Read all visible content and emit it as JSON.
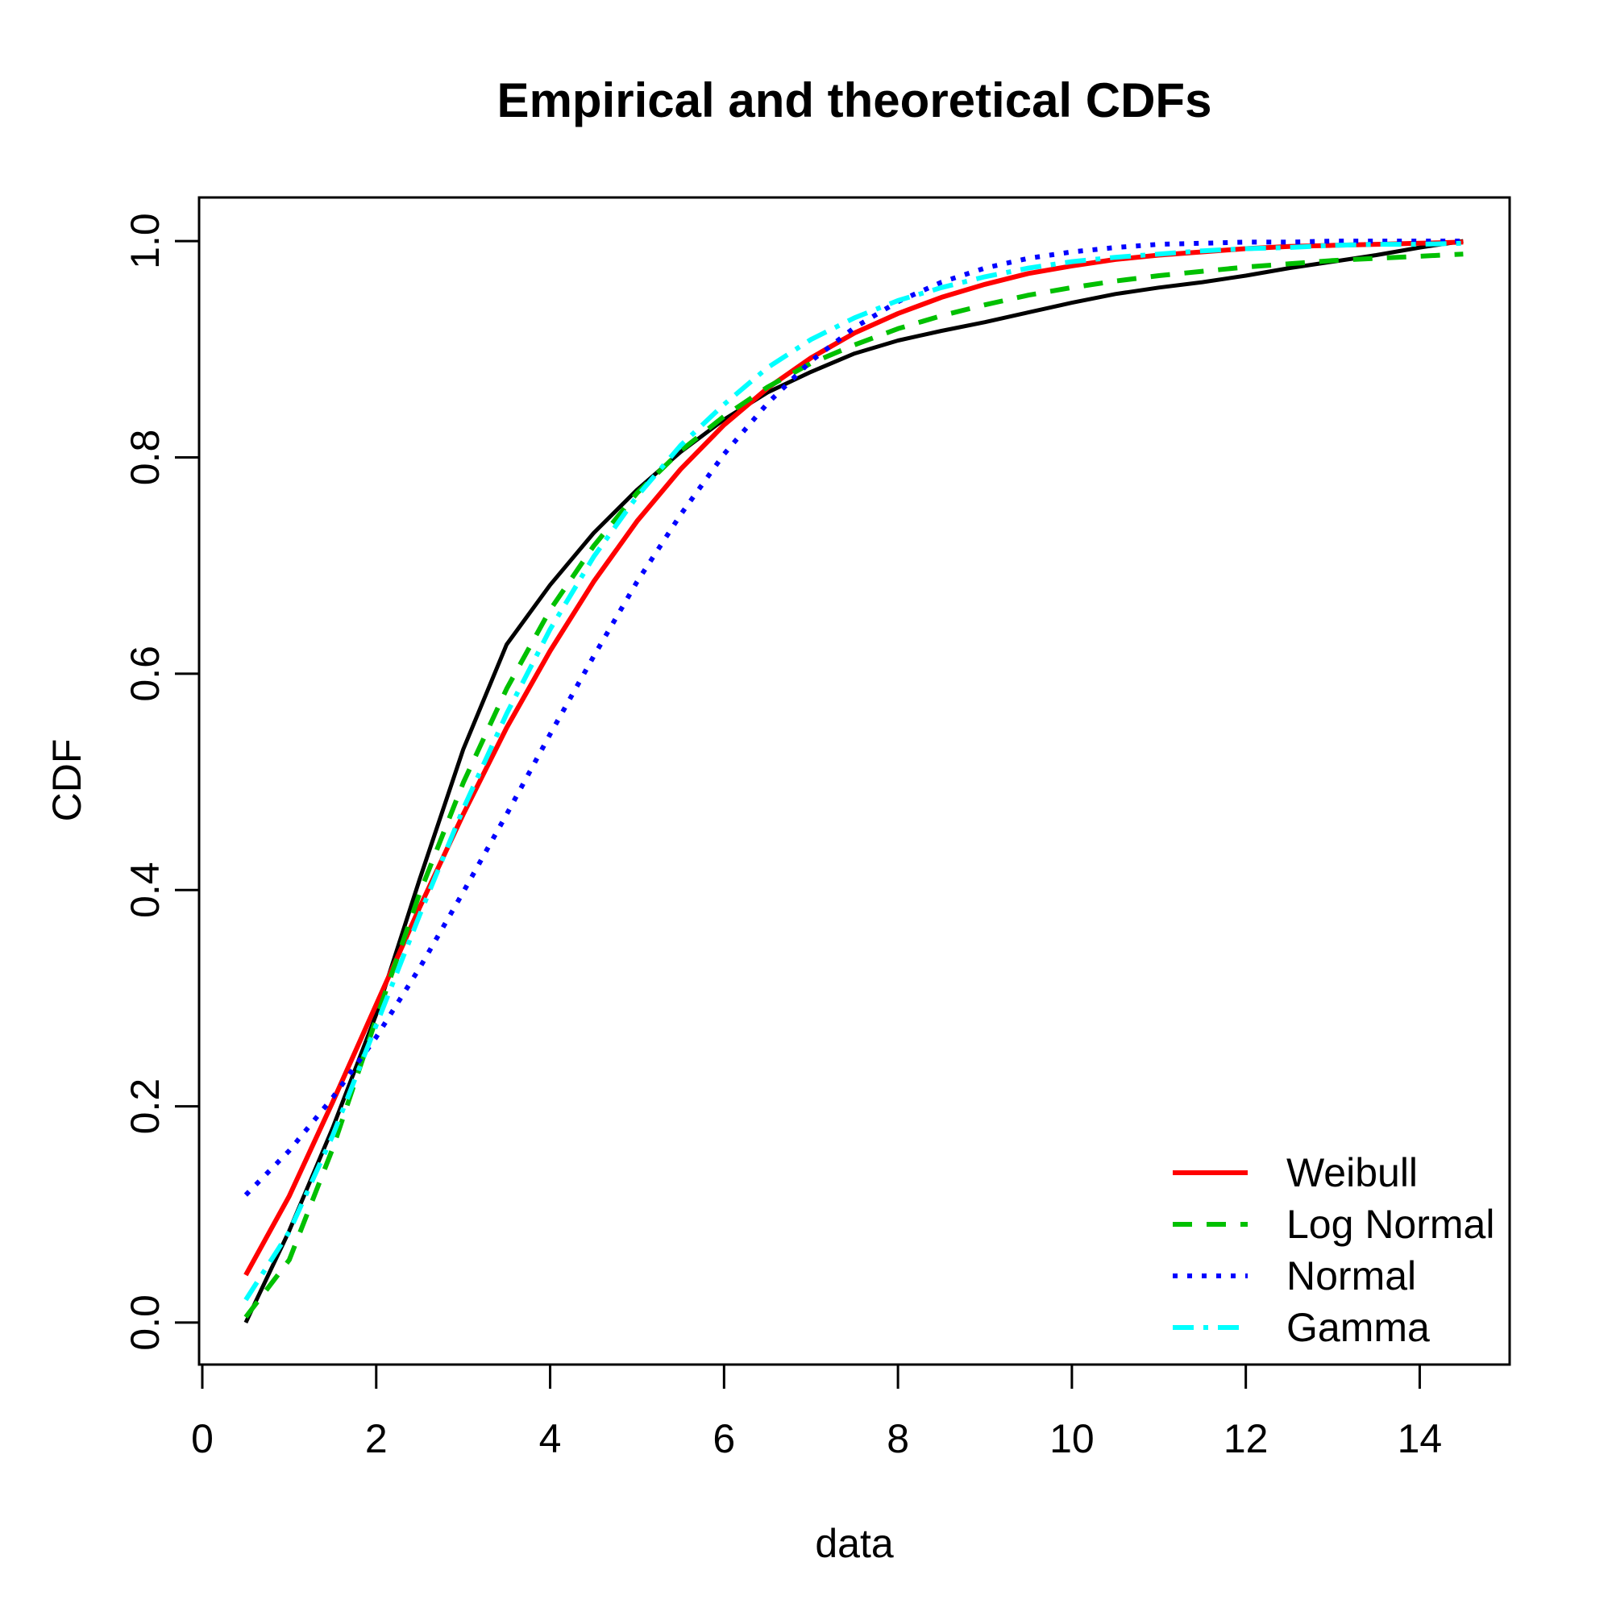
{
  "title": "Empirical and theoretical CDFs",
  "chart_data": {
    "type": "line",
    "title": "Empirical and theoretical CDFs",
    "xlabel": "data",
    "ylabel": "CDF",
    "xlim": [
      -0.037,
      15.034
    ],
    "ylim": [
      -0.0388,
      1.0403
    ],
    "x_ticks": [
      0,
      2,
      4,
      6,
      8,
      10,
      12,
      14
    ],
    "x_tick_labels": [
      "0",
      "2",
      "4",
      "6",
      "8",
      "10",
      "12",
      "14"
    ],
    "y_ticks": [
      0,
      0.2,
      0.4,
      0.6,
      0.8,
      1.0
    ],
    "y_tick_labels": [
      "0.0",
      "0.2",
      "0.4",
      "0.6",
      "0.8",
      "1.0"
    ],
    "grid": false,
    "legend_position": "bottom-right",
    "x": [
      0.5,
      1,
      1.5,
      2,
      2.5,
      3,
      3.5,
      4,
      4.5,
      5,
      5.5,
      6,
      6.5,
      7,
      7.5,
      8,
      8.5,
      9,
      9.5,
      10,
      10.5,
      11,
      11.5,
      12,
      12.5,
      13,
      13.5,
      14,
      14.5
    ],
    "series": [
      {
        "name": "Empirical",
        "color": "#000000",
        "style": "solid",
        "width": 5,
        "in_legend": false,
        "values": [
          0.0,
          0.085,
          0.18,
          0.285,
          0.41,
          0.53,
          0.627,
          0.682,
          0.73,
          0.77,
          0.805,
          0.835,
          0.86,
          0.879,
          0.896,
          0.908,
          0.917,
          0.925,
          0.934,
          0.943,
          0.951,
          0.957,
          0.962,
          0.968,
          0.975,
          0.981,
          0.987,
          0.994,
          1.0
        ]
      },
      {
        "name": "Weibull",
        "color": "#FF0000",
        "style": "solid",
        "width": 6,
        "in_legend": true,
        "values": [
          0.044,
          0.117,
          0.204,
          0.294,
          0.384,
          0.47,
          0.55,
          0.621,
          0.685,
          0.741,
          0.789,
          0.83,
          0.864,
          0.892,
          0.915,
          0.933,
          0.948,
          0.96,
          0.97,
          0.977,
          0.983,
          0.987,
          0.99,
          0.993,
          0.995,
          0.996,
          0.997,
          0.998,
          0.999
        ]
      },
      {
        "name": "Log Normal",
        "color": "#00C000",
        "style": "dashed",
        "width": 6,
        "in_legend": true,
        "values": [
          0.005,
          0.058,
          0.161,
          0.281,
          0.397,
          0.499,
          0.586,
          0.659,
          0.718,
          0.767,
          0.806,
          0.838,
          0.865,
          0.887,
          0.904,
          0.919,
          0.931,
          0.941,
          0.95,
          0.957,
          0.963,
          0.968,
          0.972,
          0.976,
          0.979,
          0.982,
          0.984,
          0.986,
          0.988
        ]
      },
      {
        "name": "Normal",
        "color": "#0000FF",
        "style": "dotted",
        "width": 6,
        "in_legend": true,
        "values": [
          0.118,
          0.159,
          0.208,
          0.264,
          0.328,
          0.398,
          0.47,
          0.544,
          0.616,
          0.685,
          0.747,
          0.803,
          0.85,
          0.889,
          0.92,
          0.944,
          0.962,
          0.975,
          0.984,
          0.99,
          0.994,
          0.997,
          0.998,
          0.999,
          0.999,
          1.0,
          1.0,
          1.0,
          1.0
        ]
      },
      {
        "name": "Gamma",
        "color": "#00FFFF",
        "style": "dashdot",
        "width": 6,
        "in_legend": true,
        "values": [
          0.021,
          0.084,
          0.173,
          0.275,
          0.377,
          0.475,
          0.563,
          0.641,
          0.708,
          0.764,
          0.811,
          0.849,
          0.883,
          0.909,
          0.929,
          0.945,
          0.957,
          0.967,
          0.975,
          0.981,
          0.985,
          0.988,
          0.991,
          0.993,
          0.994,
          0.996,
          0.997,
          0.997,
          0.998
        ]
      }
    ],
    "legend": {
      "entries": [
        "Weibull",
        "Log Normal",
        "Normal",
        "Gamma"
      ]
    }
  }
}
